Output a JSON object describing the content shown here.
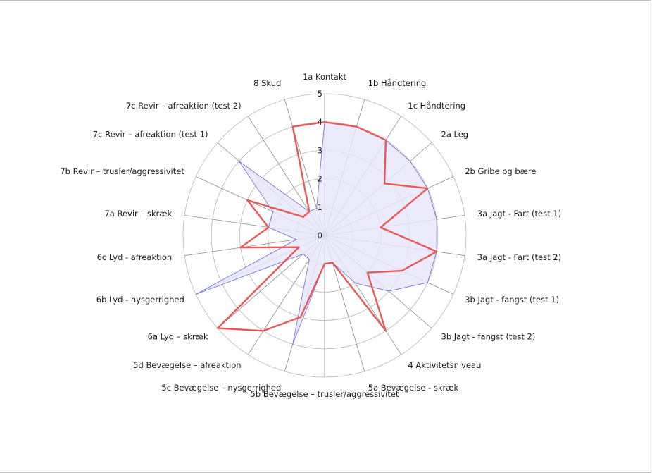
{
  "chart_data": {
    "type": "radar",
    "rmax": 5,
    "ticks": [
      "0",
      "1",
      "2",
      "3",
      "4",
      "5"
    ],
    "axes": [
      "1a Kontakt",
      "1b Håndtering",
      "1c Håndtering",
      "2a Leg",
      "2b Gribe og bære",
      "3a Jagt - Fart (test 1)",
      "3a Jagt - Fart (test 2)",
      "3b Jagt - fangst (test 1)",
      "3b Jagt - fangst (test 2)",
      "4 Aktivitetsniveau",
      "5a Bevægelse - skræk",
      "5b Bevægelse – trusler/aggressivitet",
      "5c Bevægelse – nysgerrighed",
      "5d Bevægelse – afreaktion",
      "6a Lyd – skræk",
      "6b Lyd - nysgerrighed",
      "6c Lyd - afreaktion",
      "7a Revir – skræk",
      "7b Revir – trusler/aggressivitet",
      "7c Revir – afreaktion (test 1)",
      "7c Revir – afreaktion (test 2)",
      "8 Skud"
    ],
    "series": [
      {
        "color_stroke": "#7777dd",
        "color_fill": "#e8e8fb",
        "values": [
          4,
          4,
          4,
          4,
          4,
          4,
          4,
          4,
          3,
          2,
          1,
          1,
          4,
          1,
          1,
          5,
          1,
          2,
          2,
          4,
          1,
          1
        ]
      },
      {
        "color_stroke": "#e85a5a",
        "values": [
          4,
          4,
          4,
          2.8,
          4,
          2,
          4,
          3,
          2,
          4,
          1,
          1,
          3,
          4,
          5,
          1,
          3,
          2,
          3,
          1,
          1,
          4
        ]
      }
    ]
  }
}
